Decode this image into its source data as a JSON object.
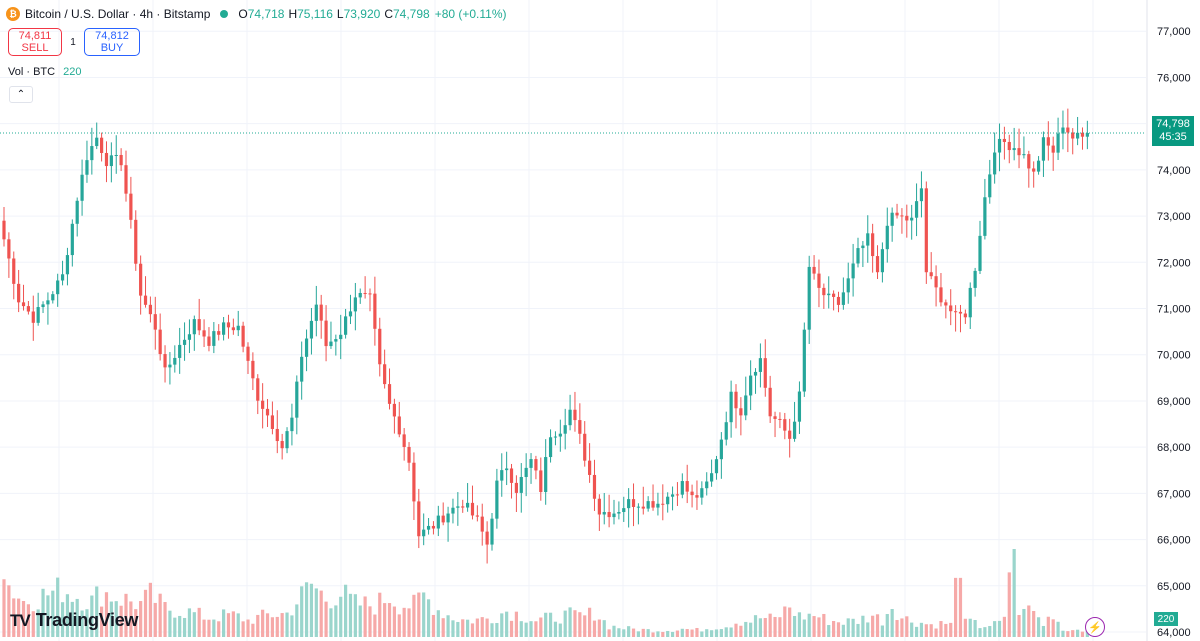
{
  "header": {
    "badge": "₿",
    "title": "Bitcoin / U.S. Dollar · 4h · Bitstamp",
    "o_label": "O",
    "o_value": "74,718",
    "h_label": "H",
    "h_value": "75,116",
    "l_label": "L",
    "l_value": "73,920",
    "c_label": "C",
    "c_value": "74,798",
    "change": "+80 (+0.11%)"
  },
  "trade": {
    "sell_price": "74,811",
    "sell_label": "SELL",
    "spread": "1",
    "buy_price": "74,812",
    "buy_label": "BUY"
  },
  "volume_legend": {
    "label": "Vol · BTC",
    "value": "220"
  },
  "collapse_icon": "⌃",
  "price_tag": {
    "price": "74,798",
    "countdown": "45:35"
  },
  "volume_tag": "220",
  "logo": {
    "mark": "TV",
    "text": "TradingView"
  },
  "colors": {
    "up": "#26a69a",
    "down": "#ef5350",
    "up_vol": "#9ad5cc",
    "down_vol": "#f6a9a8",
    "grid": "#f0f3fa"
  },
  "chart_data": {
    "type": "candlestick",
    "title": "Bitcoin / U.S. Dollar · 4h · Bitstamp",
    "ylim": [
      64000,
      77200
    ],
    "y_ticks": [
      "64,000",
      "65,000",
      "66,000",
      "67,000",
      "68,000",
      "69,000",
      "70,000",
      "71,000",
      "72,000",
      "73,000",
      "74,000",
      "75,000",
      "76,000",
      "77,000"
    ],
    "last_price": 74798,
    "volume_scale_max": 220,
    "keyframes_close": [
      [
        0,
        72500
      ],
      [
        3,
        71200
      ],
      [
        6,
        70800
      ],
      [
        9,
        71200
      ],
      [
        12,
        71700
      ],
      [
        15,
        73400
      ],
      [
        17,
        74300
      ],
      [
        19,
        74700
      ],
      [
        21,
        74200
      ],
      [
        24,
        74200
      ],
      [
        26,
        72800
      ],
      [
        28,
        71300
      ],
      [
        31,
        70600
      ],
      [
        33,
        69600
      ],
      [
        36,
        70200
      ],
      [
        39,
        70700
      ],
      [
        42,
        70300
      ],
      [
        45,
        70600
      ],
      [
        48,
        70600
      ],
      [
        50,
        69800
      ],
      [
        52,
        69100
      ],
      [
        55,
        68500
      ],
      [
        57,
        68000
      ],
      [
        59,
        68600
      ],
      [
        61,
        70000
      ],
      [
        64,
        71100
      ],
      [
        66,
        70200
      ],
      [
        69,
        70500
      ],
      [
        72,
        71300
      ],
      [
        75,
        71200
      ],
      [
        77,
        69700
      ],
      [
        79,
        68900
      ],
      [
        81,
        68400
      ],
      [
        83,
        67700
      ],
      [
        85,
        66100
      ],
      [
        88,
        66300
      ],
      [
        91,
        66600
      ],
      [
        94,
        66800
      ],
      [
        97,
        66400
      ],
      [
        99,
        65900
      ],
      [
        101,
        67200
      ],
      [
        103,
        67600
      ],
      [
        105,
        67100
      ],
      [
        108,
        67700
      ],
      [
        110,
        67100
      ],
      [
        112,
        68300
      ],
      [
        114,
        68400
      ],
      [
        116,
        68800
      ],
      [
        118,
        68200
      ],
      [
        120,
        67400
      ],
      [
        122,
        66600
      ],
      [
        125,
        66600
      ],
      [
        128,
        66800
      ],
      [
        131,
        66800
      ],
      [
        134,
        66800
      ],
      [
        137,
        67000
      ],
      [
        139,
        67200
      ],
      [
        141,
        66900
      ],
      [
        143,
        67000
      ],
      [
        145,
        67400
      ],
      [
        147,
        68200
      ],
      [
        149,
        69100
      ],
      [
        151,
        68800
      ],
      [
        153,
        69600
      ],
      [
        155,
        69900
      ],
      [
        157,
        68700
      ],
      [
        159,
        68500
      ],
      [
        161,
        68200
      ],
      [
        163,
        69100
      ],
      [
        165,
        71900
      ],
      [
        167,
        71400
      ],
      [
        169,
        71200
      ],
      [
        171,
        71100
      ],
      [
        173,
        71600
      ],
      [
        175,
        72200
      ],
      [
        177,
        72500
      ],
      [
        179,
        71700
      ],
      [
        181,
        72900
      ],
      [
        183,
        73000
      ],
      [
        186,
        72900
      ],
      [
        188,
        73600
      ],
      [
        189,
        71800
      ],
      [
        191,
        71400
      ],
      [
        193,
        71100
      ],
      [
        195,
        70800
      ],
      [
        197,
        70900
      ],
      [
        199,
        71900
      ],
      [
        201,
        73400
      ],
      [
        203,
        74500
      ],
      [
        205,
        74600
      ],
      [
        207,
        74500
      ],
      [
        209,
        74300
      ],
      [
        211,
        73900
      ],
      [
        213,
        74600
      ],
      [
        215,
        74400
      ],
      [
        217,
        75000
      ],
      [
        219,
        74700
      ],
      [
        221,
        74700
      ],
      [
        222,
        74800
      ]
    ],
    "volume_keyframes": [
      [
        0,
        210
      ],
      [
        4,
        130
      ],
      [
        8,
        150
      ],
      [
        12,
        175
      ],
      [
        15,
        150
      ],
      [
        18,
        130
      ],
      [
        20,
        165
      ],
      [
        24,
        140
      ],
      [
        28,
        120
      ],
      [
        30,
        150
      ],
      [
        33,
        105
      ],
      [
        38,
        90
      ],
      [
        42,
        70
      ],
      [
        46,
        80
      ],
      [
        48,
        75
      ],
      [
        50,
        60
      ],
      [
        54,
        80
      ],
      [
        58,
        85
      ],
      [
        61,
        150
      ],
      [
        63,
        190
      ],
      [
        66,
        140
      ],
      [
        69,
        160
      ],
      [
        72,
        120
      ],
      [
        76,
        115
      ],
      [
        79,
        150
      ],
      [
        81,
        120
      ],
      [
        84,
        115
      ],
      [
        86,
        150
      ],
      [
        89,
        100
      ],
      [
        92,
        70
      ],
      [
        95,
        60
      ],
      [
        98,
        65
      ],
      [
        100,
        70
      ],
      [
        103,
        95
      ],
      [
        106,
        80
      ],
      [
        109,
        60
      ],
      [
        112,
        70
      ],
      [
        116,
        80
      ],
      [
        119,
        75
      ],
      [
        121,
        90
      ],
      [
        124,
        40
      ],
      [
        128,
        30
      ],
      [
        132,
        25
      ],
      [
        136,
        25
      ],
      [
        139,
        30
      ],
      [
        142,
        25
      ],
      [
        145,
        35
      ],
      [
        148,
        40
      ],
      [
        150,
        55
      ],
      [
        153,
        60
      ],
      [
        155,
        70
      ],
      [
        158,
        65
      ],
      [
        161,
        110
      ],
      [
        163,
        75
      ],
      [
        166,
        80
      ],
      [
        169,
        60
      ],
      [
        172,
        55
      ],
      [
        175,
        60
      ],
      [
        178,
        80
      ],
      [
        180,
        60
      ],
      [
        182,
        120
      ],
      [
        184,
        70
      ],
      [
        187,
        55
      ],
      [
        190,
        45
      ],
      [
        193,
        50
      ],
      [
        195,
        40
      ],
      [
        198,
        55
      ],
      [
        200,
        40
      ],
      [
        203,
        45
      ],
      [
        206,
        65
      ],
      [
        208,
        170
      ],
      [
        210,
        95
      ],
      [
        211,
        90
      ],
      [
        213,
        45
      ],
      [
        215,
        90
      ],
      [
        217,
        25
      ],
      [
        219,
        35
      ],
      [
        221,
        30
      ],
      [
        222,
        20
      ]
    ],
    "volume_spikes": [
      [
        0,
        210
      ],
      [
        195,
        215
      ],
      [
        196,
        215
      ],
      [
        206,
        235
      ],
      [
        207,
        320
      ],
      [
        208,
        80
      ],
      [
        219,
        25
      ]
    ],
    "n_candles": 223
  }
}
